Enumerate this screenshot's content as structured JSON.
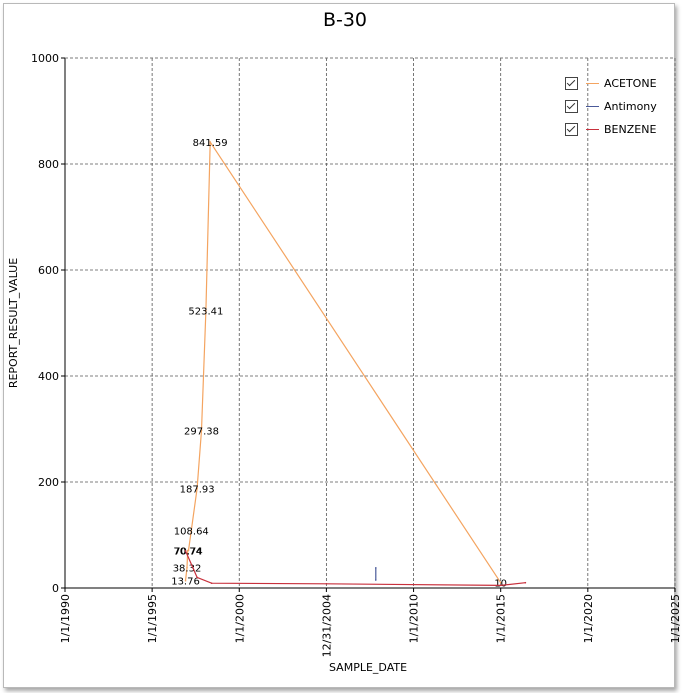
{
  "chart_data": {
    "type": "line",
    "title": "B-30",
    "xlabel": "SAMPLE_DATE",
    "ylabel": "REPORT_RESULT_VALUE",
    "ylim": [
      0,
      1000
    ],
    "yticks": [
      "0",
      "200",
      "400",
      "600",
      "800",
      "1000"
    ],
    "xticks": [
      "1/1/1990",
      "1/1/1995",
      "1/1/2000",
      "12/31/2004",
      "1/1/2010",
      "1/1/2015",
      "1/1/2020",
      "1/1/2025"
    ],
    "grid": true,
    "legend_position": "top-right",
    "series": [
      {
        "name": "ACETONE",
        "color": "#f4a460",
        "points": [
          {
            "x": "1996-12-01",
            "y": 13.76,
            "label": "13.76"
          },
          {
            "x": "1997-01-01",
            "y": 38.32,
            "label": "38.32"
          },
          {
            "x": "1997-01-15",
            "y": 70.74,
            "label": "70.74"
          },
          {
            "x": "1997-02-01",
            "y": 70.74,
            "label": "70.74"
          },
          {
            "x": "1997-04-01",
            "y": 108.64,
            "label": "108.64"
          },
          {
            "x": "1997-08-01",
            "y": 187.93,
            "label": "187.93"
          },
          {
            "x": "1997-11-01",
            "y": 297.38,
            "label": "297.38"
          },
          {
            "x": "1998-02-01",
            "y": 523.41,
            "label": "523.41"
          },
          {
            "x": "1998-05-01",
            "y": 841.59,
            "label": "841.59"
          },
          {
            "x": "2015-01-01",
            "y": 10,
            "label": "10"
          }
        ]
      },
      {
        "name": "Antimony",
        "color": "#4a5a9a",
        "points": [
          {
            "x": "2007-11-01",
            "y": 15
          },
          {
            "x": "2007-11-02",
            "y": 38
          }
        ]
      },
      {
        "name": "BENZENE",
        "color": "#c8303c",
        "points": [
          {
            "x": "1996-12-01",
            "y": 70
          },
          {
            "x": "1997-08-01",
            "y": 20
          },
          {
            "x": "1998-06-01",
            "y": 9
          },
          {
            "x": "2004-12-31",
            "y": 8
          },
          {
            "x": "2015-01-01",
            "y": 5
          },
          {
            "x": "2016-06-01",
            "y": 10
          }
        ]
      }
    ]
  },
  "legend": {
    "items": [
      {
        "label": "ACETONE",
        "color": "#f4a460"
      },
      {
        "label": "Antimony",
        "color": "#4a5a9a"
      },
      {
        "label": "BENZENE",
        "color": "#c8303c"
      }
    ]
  }
}
